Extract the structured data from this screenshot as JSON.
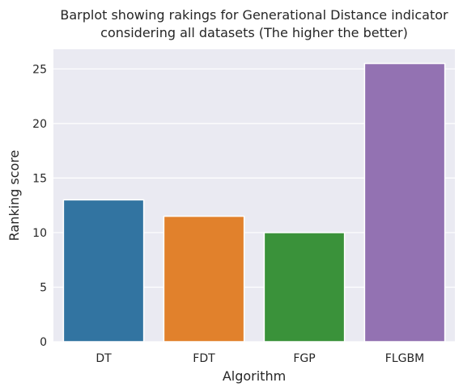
{
  "chart_data": {
    "type": "bar",
    "title_lines": [
      "Barplot showing rakings for Generational Distance indicator",
      "considering all datasets (The higher the better)"
    ],
    "xlabel": "Algorithm",
    "ylabel": "Ranking score",
    "categories": [
      "DT",
      "FDT",
      "FGP",
      "FLGBM"
    ],
    "values": [
      13.0,
      11.5,
      10.0,
      25.5
    ],
    "ylim": [
      0,
      26.8
    ],
    "yticks": [
      "0",
      "5",
      "10",
      "15",
      "20",
      "25"
    ],
    "grid": true,
    "legend": "none",
    "colors": {
      "background": "#eaeaf2",
      "grid": "#ffffff",
      "bars": [
        "#3274a1",
        "#e1812c",
        "#3a923a",
        "#9372b2"
      ]
    }
  }
}
